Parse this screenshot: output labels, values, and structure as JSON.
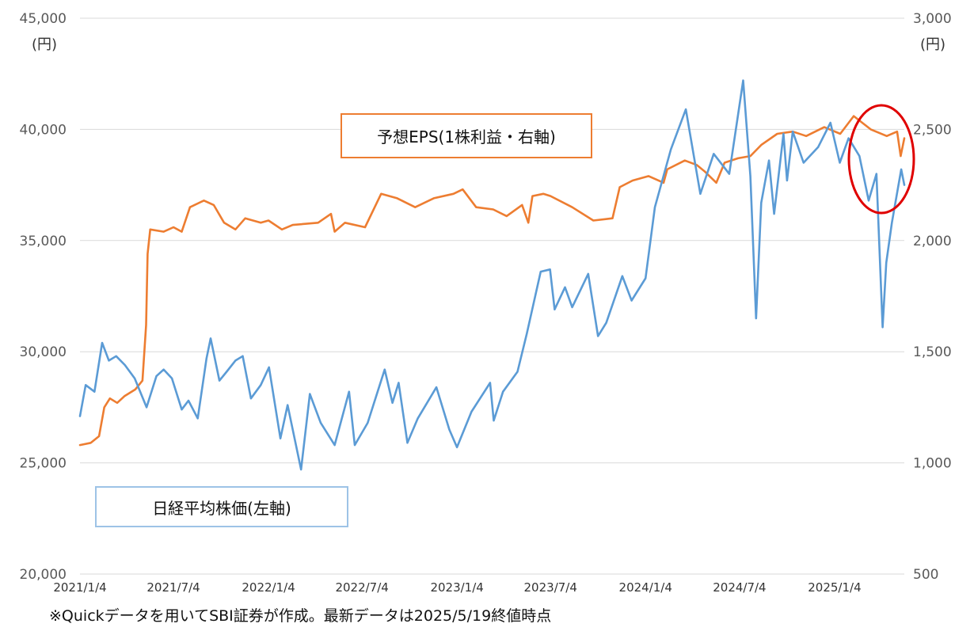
{
  "units": {
    "left": "(円)",
    "right": "(円)"
  },
  "legend": {
    "eps": "予想EPS(1株利益・右軸)",
    "nikkei": "日経平均株価(左軸)"
  },
  "footnote": "※Quickデータを用いてSBI証券が作成。最新データは2025/5/19終値時点",
  "colors": {
    "nikkei": "#5B9BD5",
    "eps": "#ED7D31",
    "highlight": "#E00000",
    "grid": "#D9D9D9"
  },
  "chart_data": {
    "type": "line",
    "title": "",
    "x_tick_labels": [
      "2021/1/4",
      "2021/7/4",
      "2022/1/4",
      "2022/7/4",
      "2023/1/4",
      "2023/7/4",
      "2024/1/4",
      "2024/7/4",
      "2025/1/4"
    ],
    "x_range": [
      "2021/1/4",
      "2025/5/19"
    ],
    "y_left": {
      "ylim": [
        20000,
        45000
      ],
      "ticks": [
        "20,000",
        "25,000",
        "30,000",
        "35,000",
        "40,000",
        "45,000"
      ]
    },
    "y_right": {
      "ylim": [
        500,
        3000
      ],
      "ticks": [
        "500",
        "1,000",
        "1,500",
        "2,000",
        "2,500",
        "3,000"
      ]
    },
    "grid": "horizontal",
    "series": [
      {
        "name": "日経平均株価(左軸)",
        "axis": "left",
        "color": "#5B9BD5",
        "points": [
          [
            "2021-01-04",
            27100
          ],
          [
            "2021-01-15",
            28500
          ],
          [
            "2021-02-01",
            28200
          ],
          [
            "2021-02-16",
            30400
          ],
          [
            "2021-03-01",
            29600
          ],
          [
            "2021-03-15",
            29800
          ],
          [
            "2021-04-01",
            29400
          ],
          [
            "2021-04-20",
            28800
          ],
          [
            "2021-05-13",
            27500
          ],
          [
            "2021-06-01",
            28900
          ],
          [
            "2021-06-15",
            29200
          ],
          [
            "2021-07-01",
            28800
          ],
          [
            "2021-07-20",
            27400
          ],
          [
            "2021-08-02",
            27800
          ],
          [
            "2021-08-20",
            27000
          ],
          [
            "2021-09-06",
            29700
          ],
          [
            "2021-09-14",
            30600
          ],
          [
            "2021-10-01",
            28700
          ],
          [
            "2021-10-15",
            29100
          ],
          [
            "2021-11-01",
            29600
          ],
          [
            "2021-11-15",
            29800
          ],
          [
            "2021-12-01",
            27900
          ],
          [
            "2021-12-20",
            28500
          ],
          [
            "2022-01-05",
            29300
          ],
          [
            "2022-01-27",
            26100
          ],
          [
            "2022-02-10",
            27600
          ],
          [
            "2022-03-08",
            24700
          ],
          [
            "2022-03-25",
            28100
          ],
          [
            "2022-04-15",
            26800
          ],
          [
            "2022-05-12",
            25800
          ],
          [
            "2022-06-09",
            28200
          ],
          [
            "2022-06-20",
            25800
          ],
          [
            "2022-07-15",
            26800
          ],
          [
            "2022-08-17",
            29200
          ],
          [
            "2022-09-01",
            27700
          ],
          [
            "2022-09-13",
            28600
          ],
          [
            "2022-09-30",
            25900
          ],
          [
            "2022-10-20",
            27000
          ],
          [
            "2022-11-25",
            28400
          ],
          [
            "2022-12-20",
            26500
          ],
          [
            "2023-01-04",
            25700
          ],
          [
            "2023-02-01",
            27300
          ],
          [
            "2023-03-09",
            28600
          ],
          [
            "2023-03-16",
            26900
          ],
          [
            "2023-04-03",
            28200
          ],
          [
            "2023-05-01",
            29100
          ],
          [
            "2023-05-19",
            30800
          ],
          [
            "2023-06-15",
            33600
          ],
          [
            "2023-07-03",
            33700
          ],
          [
            "2023-07-12",
            31900
          ],
          [
            "2023-08-01",
            32900
          ],
          [
            "2023-08-15",
            32000
          ],
          [
            "2023-09-15",
            33500
          ],
          [
            "2023-10-04",
            30700
          ],
          [
            "2023-10-20",
            31300
          ],
          [
            "2023-11-20",
            33400
          ],
          [
            "2023-12-08",
            32300
          ],
          [
            "2024-01-04",
            33300
          ],
          [
            "2024-01-22",
            36500
          ],
          [
            "2024-02-22",
            39100
          ],
          [
            "2024-03-22",
            40900
          ],
          [
            "2024-04-19",
            37100
          ],
          [
            "2024-05-15",
            38900
          ],
          [
            "2024-06-14",
            38000
          ],
          [
            "2024-07-11",
            42200
          ],
          [
            "2024-07-25",
            37900
          ],
          [
            "2024-08-05",
            31500
          ],
          [
            "2024-08-15",
            36700
          ],
          [
            "2024-08-30",
            38600
          ],
          [
            "2024-09-09",
            36200
          ],
          [
            "2024-09-27",
            39800
          ],
          [
            "2024-10-04",
            37700
          ],
          [
            "2024-10-15",
            39900
          ],
          [
            "2024-11-05",
            38500
          ],
          [
            "2024-12-03",
            39200
          ],
          [
            "2024-12-27",
            40300
          ],
          [
            "2025-01-14",
            38500
          ],
          [
            "2025-01-31",
            39600
          ],
          [
            "2025-02-21",
            38800
          ],
          [
            "2025-03-11",
            36800
          ],
          [
            "2025-03-26",
            38000
          ],
          [
            "2025-04-07",
            31100
          ],
          [
            "2025-04-14",
            34000
          ],
          [
            "2025-04-25",
            35800
          ],
          [
            "2025-05-13",
            38200
          ],
          [
            "2025-05-19",
            37500
          ]
        ]
      },
      {
        "name": "予想EPS(1株利益・右軸)",
        "axis": "right",
        "color": "#ED7D31",
        "points": [
          [
            "2021-01-04",
            1080
          ],
          [
            "2021-01-25",
            1090
          ],
          [
            "2021-02-10",
            1120
          ],
          [
            "2021-02-20",
            1250
          ],
          [
            "2021-03-03",
            1290
          ],
          [
            "2021-03-17",
            1270
          ],
          [
            "2021-03-31",
            1300
          ],
          [
            "2021-04-21",
            1330
          ],
          [
            "2021-05-05",
            1370
          ],
          [
            "2021-05-12",
            1620
          ],
          [
            "2021-05-15",
            1940
          ],
          [
            "2021-05-20",
            2050
          ],
          [
            "2021-06-15",
            2040
          ],
          [
            "2021-07-04",
            2060
          ],
          [
            "2021-07-20",
            2040
          ],
          [
            "2021-08-05",
            2150
          ],
          [
            "2021-09-01",
            2180
          ],
          [
            "2021-09-20",
            2160
          ],
          [
            "2021-10-10",
            2080
          ],
          [
            "2021-11-01",
            2050
          ],
          [
            "2021-11-20",
            2100
          ],
          [
            "2021-12-20",
            2080
          ],
          [
            "2022-01-04",
            2090
          ],
          [
            "2022-01-30",
            2050
          ],
          [
            "2022-02-20",
            2070
          ],
          [
            "2022-04-10",
            2080
          ],
          [
            "2022-05-05",
            2120
          ],
          [
            "2022-05-12",
            2040
          ],
          [
            "2022-06-01",
            2080
          ],
          [
            "2022-07-10",
            2060
          ],
          [
            "2022-08-10",
            2210
          ],
          [
            "2022-09-10",
            2190
          ],
          [
            "2022-10-15",
            2150
          ],
          [
            "2022-11-20",
            2190
          ],
          [
            "2022-12-28",
            2210
          ],
          [
            "2023-01-15",
            2230
          ],
          [
            "2023-02-10",
            2150
          ],
          [
            "2023-03-15",
            2140
          ],
          [
            "2023-04-10",
            2110
          ],
          [
            "2023-05-10",
            2160
          ],
          [
            "2023-05-22",
            2080
          ],
          [
            "2023-05-30",
            2200
          ],
          [
            "2023-06-20",
            2210
          ],
          [
            "2023-07-04",
            2200
          ],
          [
            "2023-08-15",
            2150
          ],
          [
            "2023-09-25",
            2090
          ],
          [
            "2023-11-01",
            2100
          ],
          [
            "2023-11-15",
            2240
          ],
          [
            "2023-12-10",
            2270
          ],
          [
            "2024-01-10",
            2290
          ],
          [
            "2024-02-08",
            2260
          ],
          [
            "2024-02-15",
            2320
          ],
          [
            "2024-03-20",
            2360
          ],
          [
            "2024-04-12",
            2340
          ],
          [
            "2024-04-28",
            2310
          ],
          [
            "2024-05-20",
            2260
          ],
          [
            "2024-06-05",
            2350
          ],
          [
            "2024-07-01",
            2370
          ],
          [
            "2024-07-25",
            2380
          ],
          [
            "2024-08-15",
            2430
          ],
          [
            "2024-09-15",
            2480
          ],
          [
            "2024-10-15",
            2490
          ],
          [
            "2024-11-10",
            2470
          ],
          [
            "2024-12-15",
            2510
          ],
          [
            "2025-01-15",
            2480
          ],
          [
            "2025-02-10",
            2560
          ],
          [
            "2025-03-15",
            2500
          ],
          [
            "2025-04-15",
            2470
          ],
          [
            "2025-05-05",
            2490
          ],
          [
            "2025-05-12",
            2380
          ],
          [
            "2025-05-19",
            2460
          ]
        ]
      }
    ],
    "annotations": [
      {
        "type": "ellipse",
        "color": "#E00000",
        "around": [
          "2025-02-01",
          "2025-05-19"
        ]
      }
    ]
  }
}
